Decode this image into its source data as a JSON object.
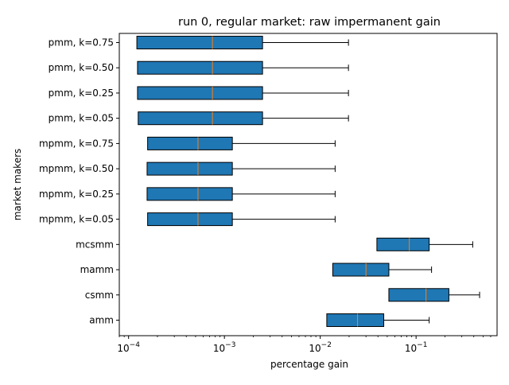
{
  "chart_data": {
    "type": "boxplot",
    "orientation": "horizontal",
    "title": "run 0, regular market: raw impermanent gain",
    "xlabel": "percentage gain",
    "ylabel": "market makers",
    "xscale": "log",
    "xlim": [
      8e-05,
      0.7
    ],
    "xticks": [
      {
        "value": 0.0001,
        "base": "10",
        "exp": "−4"
      },
      {
        "value": 0.001,
        "base": "10",
        "exp": "−3"
      },
      {
        "value": 0.01,
        "base": "10",
        "exp": "−2"
      },
      {
        "value": 0.1,
        "base": "10",
        "exp": "−1"
      }
    ],
    "grid": false,
    "box_color": "#1f77b4",
    "median_color": "#ff7f0e",
    "categories": [
      "amm",
      "csmm",
      "mamm",
      "mcsmm",
      "mpmm, k=0.05",
      "mpmm, k=0.25",
      "mpmm, k=0.50",
      "mpmm, k=0.75",
      "pmm, k=0.05",
      "pmm, k=0.25",
      "pmm, k=0.50",
      "pmm, k=0.75"
    ],
    "boxes": [
      {
        "label": "amm",
        "whislo": 0.0117,
        "q1": 0.0117,
        "med": 0.0245,
        "q3": 0.046,
        "whishi": 0.137
      },
      {
        "label": "csmm",
        "whislo": 0.052,
        "q1": 0.052,
        "med": 0.127,
        "q3": 0.22,
        "whishi": 0.46
      },
      {
        "label": "mamm",
        "whislo": 0.0135,
        "q1": 0.0135,
        "med": 0.03,
        "q3": 0.052,
        "whishi": 0.145
      },
      {
        "label": "mcsmm",
        "whislo": 0.039,
        "q1": 0.039,
        "med": 0.085,
        "q3": 0.137,
        "whishi": 0.39
      },
      {
        "label": "mpmm, k=0.05",
        "whislo": 0.000158,
        "q1": 0.000158,
        "med": 0.00053,
        "q3": 0.00121,
        "whishi": 0.0143
      },
      {
        "label": "mpmm, k=0.25",
        "whislo": 0.000156,
        "q1": 0.000156,
        "med": 0.00053,
        "q3": 0.00121,
        "whishi": 0.0143
      },
      {
        "label": "mpmm, k=0.50",
        "whislo": 0.000156,
        "q1": 0.000156,
        "med": 0.00053,
        "q3": 0.00121,
        "whishi": 0.0143
      },
      {
        "label": "mpmm, k=0.75",
        "whislo": 0.000158,
        "q1": 0.000158,
        "med": 0.00053,
        "q3": 0.00121,
        "whishi": 0.0143
      },
      {
        "label": "pmm, k=0.05",
        "whislo": 0.000126,
        "q1": 0.000126,
        "med": 0.00075,
        "q3": 0.0025,
        "whishi": 0.0197
      },
      {
        "label": "pmm, k=0.25",
        "whislo": 0.000124,
        "q1": 0.000124,
        "med": 0.00075,
        "q3": 0.0025,
        "whishi": 0.0197
      },
      {
        "label": "pmm, k=0.50",
        "whislo": 0.000124,
        "q1": 0.000124,
        "med": 0.00075,
        "q3": 0.0025,
        "whishi": 0.0197
      },
      {
        "label": "pmm, k=0.75",
        "whislo": 0.000122,
        "q1": 0.000122,
        "med": 0.00075,
        "q3": 0.0025,
        "whishi": 0.0197
      }
    ]
  }
}
